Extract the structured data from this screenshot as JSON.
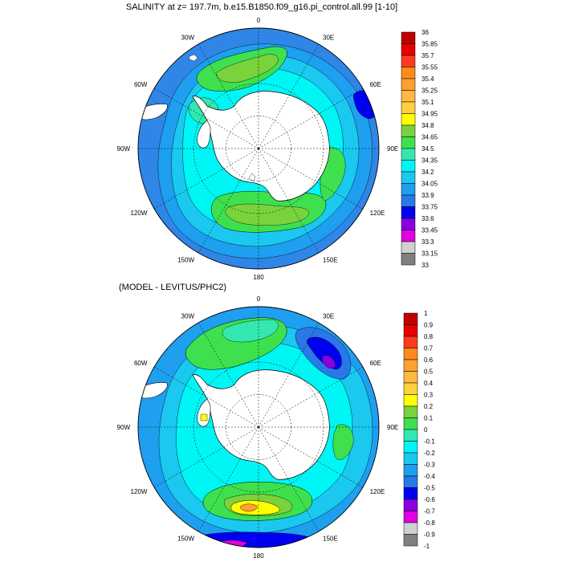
{
  "panel1": {
    "title": "SALINITY at z= 197.7m, b.e15.B1850.f09_g16.pi_control.all.99 [1-10]",
    "colorbar": {
      "labels": [
        "36",
        "35.85",
        "35.7",
        "35.55",
        "35.4",
        "35.25",
        "35.1",
        "34.95",
        "34.8",
        "34.65",
        "34.5",
        "34.35",
        "34.2",
        "34.05",
        "33.9",
        "33.75",
        "33.6",
        "33.45",
        "33.3",
        "33.15",
        "33"
      ],
      "colors": [
        "#c00000",
        "#e80000",
        "#ff3a1f",
        "#ff8a1a",
        "#ffa030",
        "#ffb840",
        "#ffd040",
        "#ffff00",
        "#7ad23c",
        "#3ee04e",
        "#33e8b0",
        "#00f5f5",
        "#1ac8f0",
        "#1e9ff0",
        "#2878e8",
        "#0000f0",
        "#8a00e0",
        "#e000e0",
        "#d0d0d0",
        "#808080"
      ]
    }
  },
  "panel2": {
    "title": "(MODEL - LEVITUS/PHC2)",
    "colorbar": {
      "labels": [
        "1",
        "0.9",
        "0.8",
        "0.7",
        "0.6",
        "0.5",
        "0.4",
        "0.3",
        "0.2",
        "0.1",
        "0",
        "-0.1",
        "-0.2",
        "-0.3",
        "-0.4",
        "-0.5",
        "-0.6",
        "-0.7",
        "-0.8",
        "-0.9",
        "-1"
      ],
      "colors": [
        "#c00000",
        "#e80000",
        "#ff3a1f",
        "#ff8a1a",
        "#ffa030",
        "#ffb840",
        "#ffd040",
        "#ffff00",
        "#7ad23c",
        "#3ee04e",
        "#33e8b0",
        "#00f5f5",
        "#1ac8f0",
        "#1e9ff0",
        "#2878e8",
        "#0000f0",
        "#8a00e0",
        "#e000e0",
        "#d0d0d0",
        "#808080"
      ]
    }
  },
  "longitude_labels": [
    "0",
    "30E",
    "60E",
    "90E",
    "120E",
    "150E",
    "180",
    "150W",
    "120W",
    "90W",
    "60W",
    "30W"
  ],
  "map_colors": {
    "ocean_low": "#2f86e6",
    "ocean_mid": "#1ac8f0",
    "cyan": "#00f5f5",
    "teal": "#33e8b0",
    "green": "#3ee04e",
    "lime": "#7ad23c",
    "deep_blue": "#0000f0",
    "violet": "#8a00e0",
    "magenta": "#e000e0",
    "yellow": "#ffff00",
    "orange": "#ffa030",
    "land": "#ffffff"
  }
}
